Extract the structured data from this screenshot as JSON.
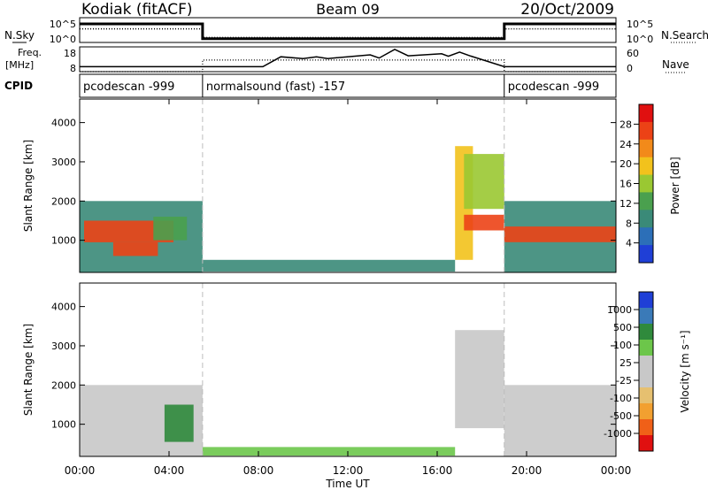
{
  "header": {
    "station": "Kodiak (fitACF)",
    "beam": "Beam 09",
    "date": "20/Oct/2009"
  },
  "colors": {
    "power_scale": [
      "#1f3fd6",
      "#2c6fb8",
      "#3a8a78",
      "#4aa04e",
      "#9ac832",
      "#f2c21c",
      "#f28a1a",
      "#ec4216",
      "#e01010"
    ],
    "velocity_scale": [
      "#e01010",
      "#f06018",
      "#f2a030",
      "#e6c070",
      "#c8c8c8",
      "#c8c8c8",
      "#6cc64a",
      "#2f8a3c",
      "#3a7ab8",
      "#1f3fd6"
    ],
    "sweep_divider": "#bdbdbd"
  },
  "chart_data": [
    {
      "type": "line",
      "name": "sky-noise-panel",
      "left_label": "N.Sky",
      "right_label": "N.Search",
      "left_ticks": [
        "10^5",
        "10^0"
      ],
      "right_ticks": [
        "10^5",
        "10^0"
      ],
      "series": [
        {
          "role": "N.Sky",
          "style": "solid",
          "level": [
            [
              0,
              0.75
            ],
            [
              5.5,
              0.75
            ],
            [
              5.5,
              0.15
            ],
            [
              19,
              0.15
            ],
            [
              19,
              0.75
            ],
            [
              24,
              0.75
            ]
          ]
        },
        {
          "role": "N.Search",
          "style": "dotted",
          "level": [
            [
              0,
              0.55
            ],
            [
              5.5,
              0.55
            ],
            [
              5.5,
              0.2
            ],
            [
              19,
              0.2
            ],
            [
              19,
              0.55
            ],
            [
              24,
              0.55
            ]
          ]
        }
      ]
    },
    {
      "type": "line",
      "name": "frequency-panel",
      "left_label": "Freq.",
      "left_unit": "[MHz]",
      "right_label": "Nave",
      "left_ticks": [
        "18",
        "8"
      ],
      "right_ticks": [
        "60",
        "0"
      ],
      "series": [
        {
          "role": "Freq.",
          "style": "solid",
          "x": [
            0,
            5.5,
            8.2,
            9,
            10,
            10.6,
            11.1,
            13,
            13.4,
            14.1,
            14.7,
            16.2,
            16.5,
            17,
            17.5,
            19,
            24
          ],
          "y": [
            10,
            10,
            10,
            14,
            13.3,
            14,
            13.3,
            14.8,
            13.5,
            17,
            14.4,
            15.2,
            14.2,
            15.9,
            14.3,
            10,
            10
          ]
        },
        {
          "role": "Nave",
          "style": "dotted",
          "x": [
            0,
            5.5,
            5.5,
            19,
            19,
            24
          ],
          "y": [
            0,
            0,
            28,
            28,
            0,
            0
          ]
        }
      ]
    },
    {
      "type": "table",
      "name": "cpid-strip",
      "label": "CPID",
      "segments": [
        {
          "start": 0,
          "end": 5.5,
          "text": "pcodescan -999"
        },
        {
          "start": 5.5,
          "end": 19,
          "text": "normalsound (fast) -157"
        },
        {
          "start": 19,
          "end": 24,
          "text": "pcodescan -999"
        }
      ]
    },
    {
      "type": "heatmap",
      "name": "power-panel",
      "ylabel": "Slant Range [km]",
      "ylim": [
        180,
        4600
      ],
      "yticks": [
        1000,
        2000,
        3000,
        4000
      ],
      "xlim": [
        0,
        24
      ],
      "colorbar": {
        "label": "Power [dB]",
        "min": 0,
        "max": 32,
        "ticks": [
          "4",
          "8",
          "12",
          "16",
          "20",
          "24",
          "28"
        ]
      },
      "dividers": [
        5.5,
        19
      ],
      "regions": [
        {
          "x": [
            0,
            5.5
          ],
          "range": [
            180,
            2000
          ],
          "value": 10
        },
        {
          "x": [
            0.2,
            4.2
          ],
          "range": [
            950,
            1500
          ],
          "value": 27
        },
        {
          "x": [
            1.5,
            3.5
          ],
          "range": [
            600,
            950
          ],
          "value": 28
        },
        {
          "x": [
            3.3,
            4.8
          ],
          "range": [
            1000,
            1600
          ],
          "value": 14
        },
        {
          "x": [
            5.5,
            16.8
          ],
          "range": [
            200,
            500
          ],
          "value": 8
        },
        {
          "x": [
            16.8,
            17.6
          ],
          "range": [
            500,
            3400
          ],
          "value": 18
        },
        {
          "x": [
            17.2,
            19
          ],
          "range": [
            1250,
            1650
          ],
          "value": 27
        },
        {
          "x": [
            17.2,
            19
          ],
          "range": [
            1800,
            3200
          ],
          "value": 16
        },
        {
          "x": [
            19,
            24
          ],
          "range": [
            180,
            2000
          ],
          "value": 10
        },
        {
          "x": [
            19,
            24
          ],
          "range": [
            950,
            1350
          ],
          "value": 26
        }
      ]
    },
    {
      "type": "heatmap",
      "name": "velocity-panel",
      "ylabel": "Slant Range [km]",
      "ylim": [
        180,
        4600
      ],
      "yticks": [
        1000,
        2000,
        3000,
        4000
      ],
      "xlim": [
        0,
        24
      ],
      "xticks": [
        "00:00",
        "04:00",
        "08:00",
        "12:00",
        "16:00",
        "20:00",
        "00:00"
      ],
      "xlabel": "Time UT",
      "colorbar": {
        "label": "Velocity [m s⁻¹]",
        "ticks": [
          "-1000",
          "-500",
          "-100",
          "-25",
          "25",
          "100",
          "500",
          "1000"
        ]
      },
      "dividers": [
        5.5,
        19
      ],
      "regions": [
        {
          "x": [
            0,
            5.5
          ],
          "range": [
            180,
            2000
          ],
          "value": 0
        },
        {
          "x": [
            3.8,
            5.1
          ],
          "range": [
            550,
            1500
          ],
          "value": 120
        },
        {
          "x": [
            5.5,
            16.8
          ],
          "range": [
            200,
            420
          ],
          "value": 60
        },
        {
          "x": [
            16.8,
            19
          ],
          "range": [
            900,
            3400
          ],
          "value": 0
        },
        {
          "x": [
            19,
            24
          ],
          "range": [
            180,
            2000
          ],
          "value": 0
        }
      ]
    }
  ]
}
